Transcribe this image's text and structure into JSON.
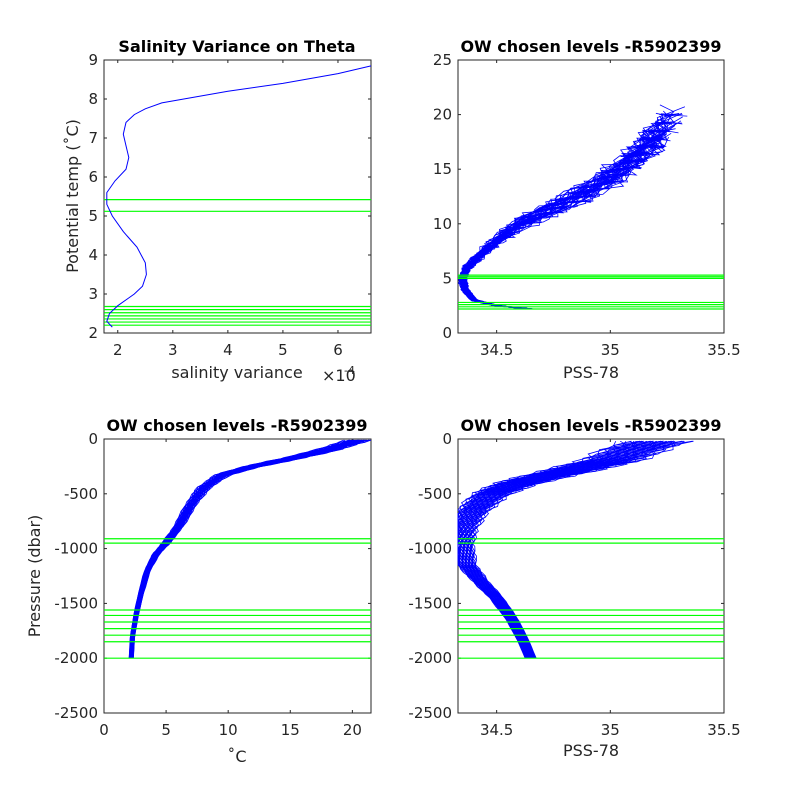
{
  "chart_data": [
    {
      "type": "line",
      "title": "Salinity Variance on Theta",
      "xlabel": "salinity variance",
      "x_exponent_label": "×10",
      "x_exponent_power": "-4",
      "ylabel": "Potential temp (˚C)",
      "xlim": [
        1.75,
        6.6
      ],
      "ylim": [
        2,
        9
      ],
      "xticks": [
        "2",
        "3",
        "4",
        "5",
        "6"
      ],
      "xtick_values": [
        2,
        3,
        4,
        5,
        6
      ],
      "yticks": [
        "2",
        "3",
        "4",
        "5",
        "6",
        "7",
        "8",
        "9"
      ],
      "ytick_values": [
        2,
        3,
        4,
        5,
        6,
        7,
        8,
        9
      ],
      "line_color": "#0000ff",
      "level_color": "#00ff00",
      "series": [
        {
          "x": [
            1.9,
            1.8,
            1.85,
            2.0,
            2.15,
            2.3,
            2.45,
            2.52,
            2.5,
            2.35,
            2.1,
            1.9,
            1.8,
            1.8,
            1.95,
            2.15,
            2.2,
            2.15,
            2.1,
            2.15,
            2.3,
            2.5,
            2.8,
            3.2,
            4.0,
            5.0,
            6.0,
            6.6
          ],
          "y": [
            2.15,
            2.3,
            2.5,
            2.7,
            2.85,
            3.0,
            3.2,
            3.5,
            3.8,
            4.2,
            4.6,
            5.0,
            5.3,
            5.6,
            5.9,
            6.2,
            6.5,
            6.8,
            7.1,
            7.4,
            7.6,
            7.75,
            7.9,
            8.0,
            8.2,
            8.4,
            8.65,
            8.85
          ]
        }
      ],
      "levels": [
        2.2,
        2.28,
        2.36,
        2.44,
        2.52,
        2.6,
        2.68,
        5.12,
        5.42
      ]
    },
    {
      "type": "line",
      "title": "OW chosen levels -R5902399",
      "xlabel": "PSS-78",
      "ylabel": "",
      "xlim": [
        34.33,
        35.5
      ],
      "ylim": [
        0,
        25
      ],
      "xticks": [
        "34.5",
        "35",
        "35.5"
      ],
      "xtick_values": [
        34.5,
        35.0,
        35.5
      ],
      "yticks": [
        "0",
        "5",
        "10",
        "15",
        "20",
        "25"
      ],
      "ytick_values": [
        0,
        5,
        10,
        15,
        20,
        25
      ],
      "line_color": "#0000ff",
      "level_color": "#00ff00",
      "profile_count": 40,
      "profile_base": {
        "s": [
          34.65,
          34.5,
          34.4,
          34.36,
          34.35,
          34.37,
          34.42,
          34.5,
          34.6,
          34.75,
          34.9,
          35.05,
          35.15,
          35.25
        ],
        "t": [
          2.2,
          2.5,
          3.0,
          4.0,
          5.0,
          6.0,
          7.0,
          8.5,
          10.0,
          11.5,
          13.0,
          15.0,
          17.0,
          19.0
        ]
      },
      "levels": [
        2.2,
        2.4,
        2.6,
        2.8,
        5.0,
        5.15,
        5.3
      ]
    },
    {
      "type": "line",
      "title": "OW chosen levels -R5902399",
      "xlabel": "˚C",
      "ylabel": "Pressure (dbar)",
      "xlim": [
        0,
        21.5
      ],
      "ylim": [
        -2500,
        0
      ],
      "xticks": [
        "0",
        "5",
        "10",
        "15",
        "20"
      ],
      "xtick_values": [
        0,
        5,
        10,
        15,
        20
      ],
      "yticks": [
        "0",
        "-500",
        "-1000",
        "-1500",
        "-2000",
        "-2500"
      ],
      "ytick_values": [
        0,
        -500,
        -1000,
        -1500,
        -2000,
        -2500
      ],
      "line_color": "#0000ff",
      "level_color": "#00ff00",
      "profile_count": 40,
      "profile_base": {
        "x": [
          2.2,
          2.3,
          2.6,
          3.0,
          3.5,
          4.2,
          5.0,
          6.0,
          7.0,
          8.0,
          9.5,
          12.0,
          15.0,
          18.0,
          20.5
        ],
        "p": [
          -2000,
          -1800,
          -1600,
          -1400,
          -1200,
          -1050,
          -950,
          -800,
          -600,
          -450,
          -330,
          -250,
          -180,
          -100,
          -10
        ]
      },
      "levels": [
        -910,
        -950,
        -1560,
        -1610,
        -1670,
        -1730,
        -1790,
        -1850,
        -2000
      ]
    },
    {
      "type": "line",
      "title": "OW chosen levels -R5902399",
      "xlabel": "PSS-78",
      "ylabel": "",
      "xlim": [
        34.33,
        35.5
      ],
      "ylim": [
        -2500,
        0
      ],
      "xticks": [
        "34.5",
        "35",
        "35.5"
      ],
      "xtick_values": [
        34.5,
        35.0,
        35.5
      ],
      "yticks": [
        "0",
        "-500",
        "-1000",
        "-1500",
        "-2000",
        "-2500"
      ],
      "ytick_values": [
        0,
        -500,
        -1000,
        -1500,
        -2000,
        -2500
      ],
      "line_color": "#0000ff",
      "level_color": "#00ff00",
      "profile_count": 40,
      "profile_base": {
        "s": [
          34.65,
          34.62,
          34.57,
          34.5,
          34.43,
          34.37,
          34.35,
          34.36,
          34.4,
          34.48,
          34.6,
          34.8,
          35.0,
          35.2
        ],
        "p": [
          -2000,
          -1850,
          -1650,
          -1450,
          -1300,
          -1150,
          -950,
          -800,
          -650,
          -500,
          -400,
          -300,
          -200,
          -20
        ]
      },
      "levels": [
        -910,
        -950,
        -1560,
        -1610,
        -1670,
        -1730,
        -1790,
        -1850,
        -2000
      ]
    }
  ]
}
